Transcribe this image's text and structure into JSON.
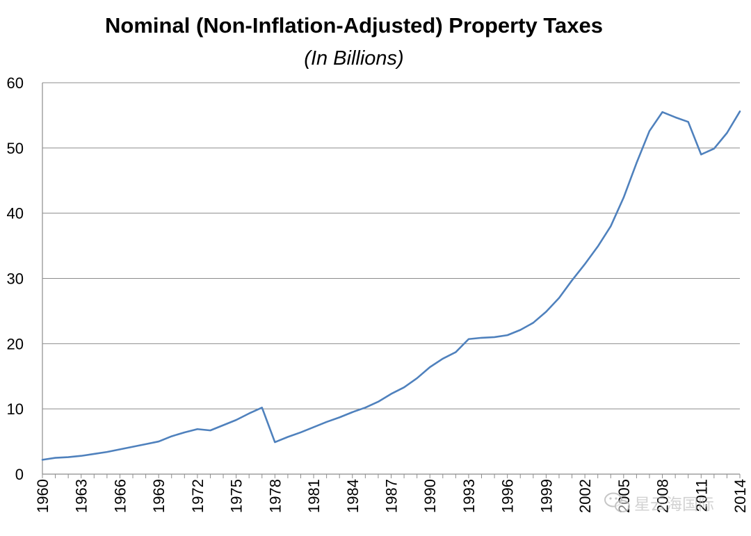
{
  "chart_data": {
    "type": "line",
    "title": "Nominal (Non-Inflation-Adjusted) Property Taxes",
    "subtitle": "(In Billions)",
    "xlabel": "",
    "ylabel": "",
    "ylim": [
      0,
      60
    ],
    "y_ticks": [
      "0",
      "10",
      "20",
      "30",
      "40",
      "50",
      "60"
    ],
    "x_tick_labels": [
      "1960",
      "1963",
      "1966",
      "1969",
      "1972",
      "1975",
      "1978",
      "1981",
      "1984",
      "1987",
      "1990",
      "1993",
      "1996",
      "1999",
      "2002",
      "2005",
      "2008",
      "2011",
      "2014"
    ],
    "grid": "horizontal",
    "legend": "none",
    "line_color": "#4f81bd",
    "x": [
      1960,
      1961,
      1962,
      1963,
      1964,
      1965,
      1966,
      1967,
      1968,
      1969,
      1970,
      1971,
      1972,
      1973,
      1974,
      1975,
      1976,
      1977,
      1978,
      1979,
      1980,
      1981,
      1982,
      1983,
      1984,
      1985,
      1986,
      1987,
      1988,
      1989,
      1990,
      1991,
      1992,
      1993,
      1994,
      1995,
      1996,
      1997,
      1998,
      1999,
      2000,
      2001,
      2002,
      2003,
      2004,
      2005,
      2006,
      2007,
      2008,
      2009,
      2010,
      2011,
      2012,
      2013,
      2014
    ],
    "series": [
      {
        "values": [
          2.2,
          2.5,
          2.6,
          2.8,
          3.1,
          3.4,
          3.8,
          4.2,
          4.6,
          5.0,
          5.8,
          6.4,
          6.9,
          6.7,
          7.5,
          8.3,
          9.3,
          10.2,
          4.9,
          5.7,
          6.4,
          7.2,
          8.0,
          8.7,
          9.5,
          10.2,
          11.1,
          12.3,
          13.3,
          14.7,
          16.4,
          17.7,
          18.7,
          20.7,
          20.9,
          21.0,
          21.3,
          22.1,
          23.2,
          24.9,
          27.0,
          29.7,
          32.2,
          34.9,
          38.0,
          42.4,
          47.7,
          52.6,
          55.5,
          54.7,
          54.0,
          49.0,
          49.9,
          52.3,
          55.6
        ]
      }
    ]
  },
  "watermark": {
    "icon": "wechat-icon",
    "text": "星云海国际"
  }
}
